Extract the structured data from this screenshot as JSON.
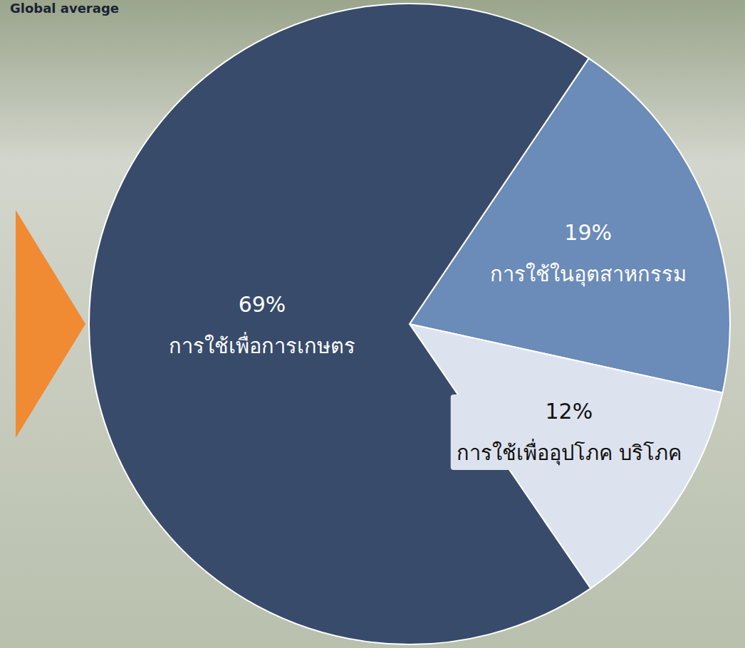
{
  "chart_data": {
    "type": "pie",
    "title": "Global average",
    "categories": [
      "การใช้ในอุตสาหกรรม",
      "การใช้เพื่ออุปโภค บริโภค",
      "การใช้เพื่อการเกษตร"
    ],
    "values": [
      19,
      12,
      69
    ],
    "value_labels": [
      "19%",
      "12%",
      "69%"
    ],
    "colors": [
      "#6b8bb8",
      "#dde3ee",
      "#384b6b"
    ],
    "data_labels": true
  }
}
